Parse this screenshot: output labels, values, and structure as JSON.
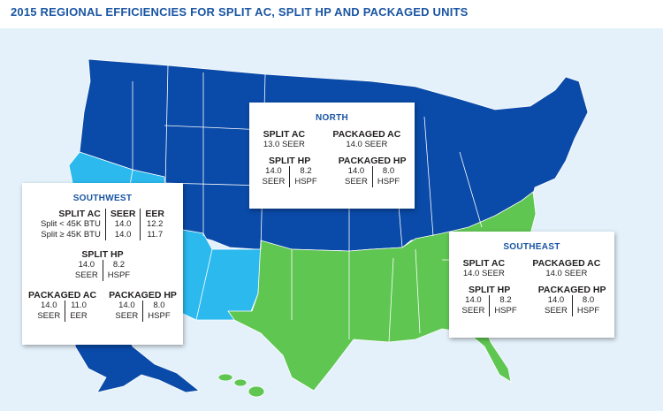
{
  "title": "2015 REGIONAL EFFICIENCIES FOR SPLIT AC, SPLIT HP AND PACKAGED UNITS",
  "colors": {
    "title": "#1a55a3",
    "background": "#e4f1fb",
    "north_region": "#0a4aa8",
    "southwest_region": "#2cb9ee",
    "southeast_region": "#5fc652",
    "state_border": "#ffffff",
    "panel_heading": "#1a55a3"
  },
  "regions": {
    "north": {
      "heading": "NORTH",
      "split_ac": {
        "label": "SPLIT AC",
        "value": "13.0 SEER"
      },
      "packaged_ac": {
        "label": "PACKAGED AC",
        "value": "14.0 SEER"
      },
      "split_hp": {
        "label": "SPLIT HP",
        "seer": "14.0",
        "seer_unit": "SEER",
        "hspf": "8.2",
        "hspf_unit": "HSPF"
      },
      "packaged_hp": {
        "label": "PACKAGED HP",
        "seer": "14.0",
        "seer_unit": "SEER",
        "hspf": "8.0",
        "hspf_unit": "HSPF"
      }
    },
    "southwest": {
      "heading": "SOUTHWEST",
      "split_ac": {
        "label": "SPLIT AC",
        "col_seer": "SEER",
        "col_eer": "EER",
        "rows": [
          {
            "name": "Split < 45K BTU",
            "seer": "14.0",
            "eer": "12.2"
          },
          {
            "name": "Split ≥ 45K BTU",
            "seer": "14.0",
            "eer": "11.7"
          }
        ]
      },
      "split_hp": {
        "label": "SPLIT HP",
        "seer": "14.0",
        "seer_unit": "SEER",
        "hspf": "8.2",
        "hspf_unit": "HSPF"
      },
      "packaged_ac": {
        "label": "PACKAGED AC",
        "seer": "14.0",
        "seer_unit": "SEER",
        "eer": "11.0",
        "eer_unit": "EER"
      },
      "packaged_hp": {
        "label": "PACKAGED HP",
        "seer": "14.0",
        "seer_unit": "SEER",
        "hspf": "8.0",
        "hspf_unit": "HSPF"
      }
    },
    "southeast": {
      "heading": "SOUTHEAST",
      "split_ac": {
        "label": "SPLIT AC",
        "value": "14.0 SEER"
      },
      "packaged_ac": {
        "label": "PACKAGED AC",
        "value": "14.0 SEER"
      },
      "split_hp": {
        "label": "SPLIT HP",
        "seer": "14.0",
        "seer_unit": "SEER",
        "hspf": "8.2",
        "hspf_unit": "HSPF"
      },
      "packaged_hp": {
        "label": "PACKAGED HP",
        "seer": "14.0",
        "seer_unit": "SEER",
        "hspf": "8.0",
        "hspf_unit": "HSPF"
      }
    }
  }
}
